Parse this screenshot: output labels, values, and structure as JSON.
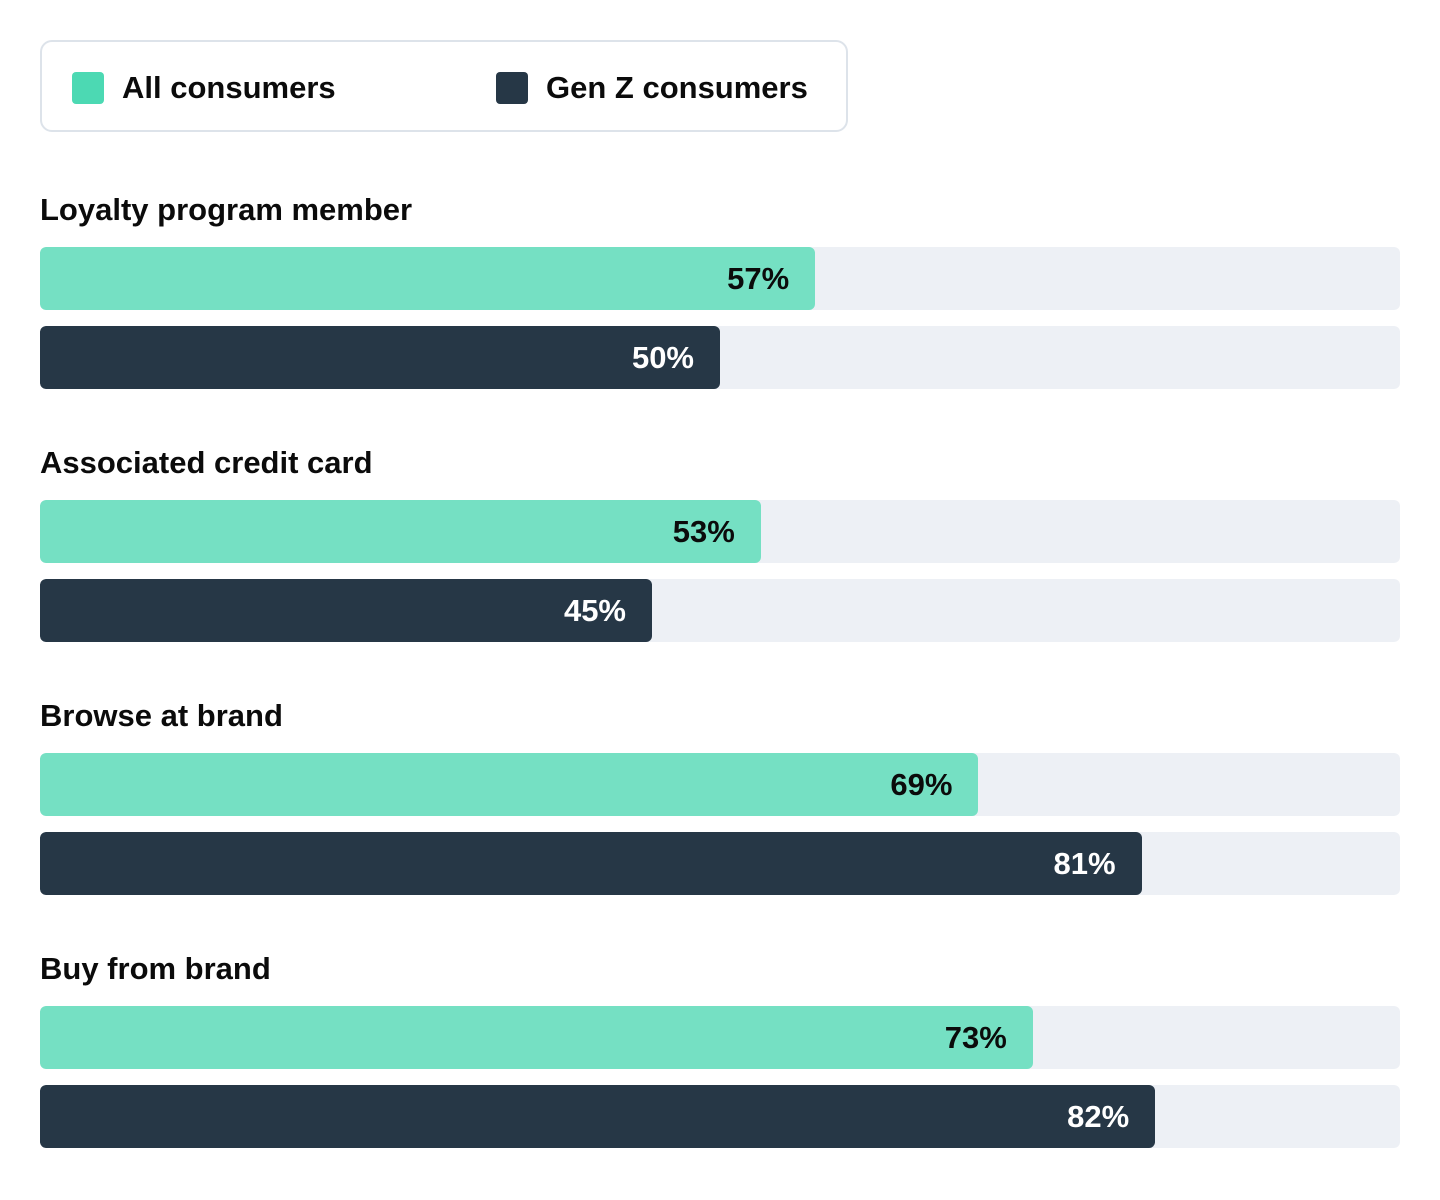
{
  "legend": [
    {
      "label": "All consumers",
      "color": "#75e0c3",
      "swatch_color": "#4cd9b3"
    },
    {
      "label": "Gen Z consumers",
      "color": "#263746",
      "swatch_color": "#263746"
    }
  ],
  "track_color": "#edf0f5",
  "chart_data": {
    "type": "bar",
    "orientation": "horizontal",
    "categories": [
      "Loyalty program member",
      "Associated credit card",
      "Browse at brand",
      "Buy from brand"
    ],
    "series": [
      {
        "name": "All consumers",
        "values": [
          57,
          53,
          69,
          73
        ],
        "labels": [
          "57%",
          "53%",
          "69%",
          "73%"
        ],
        "color": "#75e0c3",
        "label_color": "#0b0b0b"
      },
      {
        "name": "Gen Z consumers",
        "values": [
          50,
          45,
          81,
          82
        ],
        "labels": [
          "50%",
          "45%",
          "81%",
          "82%"
        ],
        "color": "#263746",
        "label_color": "#ffffff"
      }
    ],
    "xlim": [
      0,
      100
    ],
    "unit": "%",
    "grid": false,
    "legend_position": "top-left"
  }
}
